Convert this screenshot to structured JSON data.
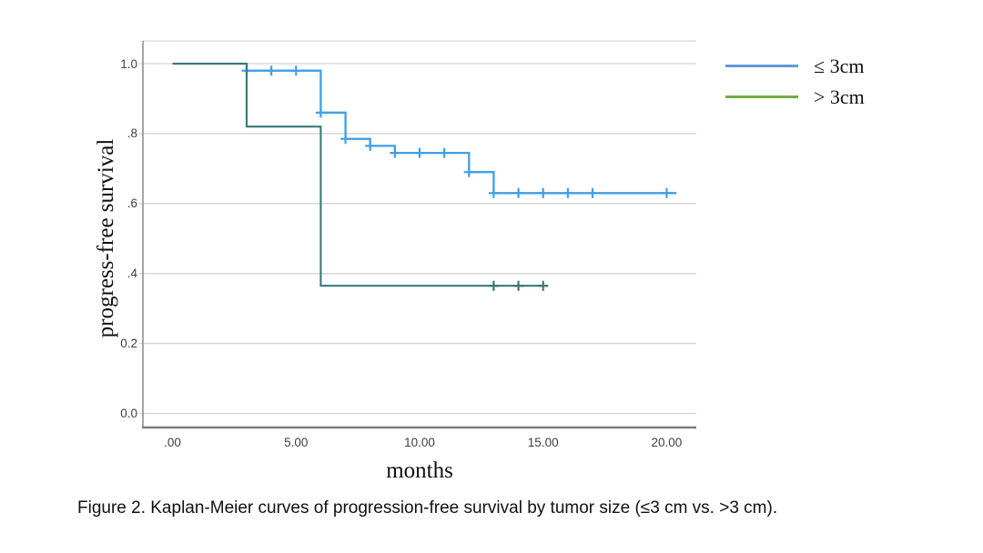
{
  "caption": "Figure 2. Kaplan-Meier curves of progression-free survival by tumor size (≤3 cm vs. >3 cm).",
  "colors": {
    "background": "#ffffff",
    "gridline": "#c9c9c9",
    "top_border": "#d6d6d6",
    "y_axis": "#8f8f8f",
    "x_axis": "#7d7d7d",
    "tick_text": "#3f3f3f",
    "blue_curve": "#3f9fe8",
    "green_curve": "#3a7879",
    "legend_blue": "#5b9bd5",
    "legend_green": "#70ad47"
  },
  "chart_data": {
    "type": "line",
    "subtype": "kaplan-meier-step",
    "title": "",
    "xlabel": "months",
    "ylabel": "progress-free survival",
    "grid": true,
    "legend_position": "outside-right-top",
    "xlim": [
      -1.2,
      21.2
    ],
    "ylim": [
      -0.04,
      1.065
    ],
    "x_ticks": [
      {
        "value": 0,
        "label": ".00"
      },
      {
        "value": 5,
        "label": "5.00"
      },
      {
        "value": 10,
        "label": "10.00"
      },
      {
        "value": 15,
        "label": "15.00"
      },
      {
        "value": 20,
        "label": "20.00"
      }
    ],
    "y_ticks": [
      {
        "value": 1.0,
        "label": "1.0"
      },
      {
        "value": 0.8,
        "label": ".8"
      },
      {
        "value": 0.6,
        "label": ".6"
      },
      {
        "value": 0.4,
        "label": ".4"
      },
      {
        "value": 0.2,
        "label": "0.2"
      },
      {
        "value": 0.0,
        "label": "0.0"
      }
    ],
    "series": [
      {
        "name": "≤ 3cm",
        "color": "#3f9fe8",
        "legend_color": "#5b9bd5",
        "steps": [
          [
            0,
            1.0
          ],
          [
            3,
            1.0
          ],
          [
            3,
            0.98
          ],
          [
            6,
            0.98
          ],
          [
            6,
            0.86
          ],
          [
            7,
            0.86
          ],
          [
            7,
            0.785
          ],
          [
            8,
            0.785
          ],
          [
            8,
            0.765
          ],
          [
            9,
            0.765
          ],
          [
            9,
            0.745
          ],
          [
            12,
            0.745
          ],
          [
            12,
            0.69
          ],
          [
            13,
            0.69
          ],
          [
            13,
            0.63
          ],
          [
            20.4,
            0.63
          ]
        ],
        "censored": [
          [
            3,
            0.98
          ],
          [
            4,
            0.98
          ],
          [
            5,
            0.98
          ],
          [
            6,
            0.86
          ],
          [
            7,
            0.785
          ],
          [
            8,
            0.765
          ],
          [
            9,
            0.745
          ],
          [
            10,
            0.745
          ],
          [
            11,
            0.745
          ],
          [
            12,
            0.69
          ],
          [
            13,
            0.63
          ],
          [
            14,
            0.63
          ],
          [
            15,
            0.63
          ],
          [
            16,
            0.63
          ],
          [
            17,
            0.63
          ],
          [
            20,
            0.63
          ]
        ]
      },
      {
        "name": "> 3cm",
        "color": "#3a7879",
        "legend_color": "#70ad47",
        "steps": [
          [
            0,
            1.0
          ],
          [
            3,
            1.0
          ],
          [
            3,
            0.82
          ],
          [
            6,
            0.82
          ],
          [
            6,
            0.365
          ],
          [
            15.2,
            0.365
          ]
        ],
        "censored": [
          [
            13,
            0.365
          ],
          [
            14,
            0.365
          ],
          [
            15,
            0.365
          ]
        ]
      }
    ]
  }
}
